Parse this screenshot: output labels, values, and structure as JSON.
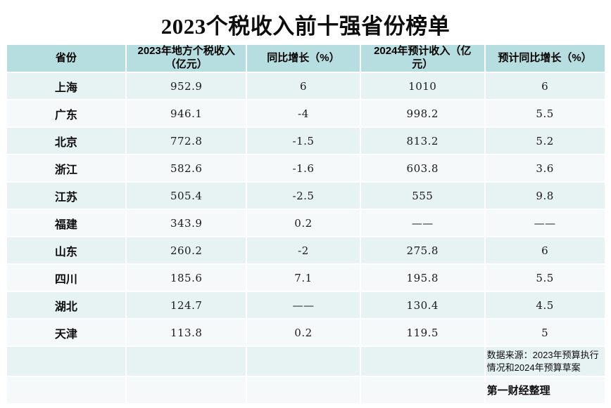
{
  "title": "2023个税收入前十强省份榜单",
  "table": {
    "headers": [
      "省份",
      "2023年地方个税收入（亿元）",
      "同比增长（%）",
      "2024年预计收入（亿元）",
      "预计同比增长（%）"
    ],
    "rows": [
      {
        "province": "上海",
        "income_2023": "952.9",
        "yoy_growth": "6",
        "income_2024": "1010",
        "expected_growth": "6"
      },
      {
        "province": "广东",
        "income_2023": "946.1",
        "yoy_growth": "-4",
        "income_2024": "998.2",
        "expected_growth": "5.5"
      },
      {
        "province": "北京",
        "income_2023": "772.8",
        "yoy_growth": "-1.5",
        "income_2024": "813.2",
        "expected_growth": "5.2"
      },
      {
        "province": "浙江",
        "income_2023": "582.6",
        "yoy_growth": "-1.6",
        "income_2024": "603.8",
        "expected_growth": "3.6"
      },
      {
        "province": "江苏",
        "income_2023": "505.4",
        "yoy_growth": "-2.5",
        "income_2024": "555",
        "expected_growth": "9.8"
      },
      {
        "province": "福建",
        "income_2023": "343.9",
        "yoy_growth": "0.2",
        "income_2024": "——",
        "expected_growth": "——"
      },
      {
        "province": "山东",
        "income_2023": "260.2",
        "yoy_growth": "-2",
        "income_2024": "275.8",
        "expected_growth": "6"
      },
      {
        "province": "四川",
        "income_2023": "185.6",
        "yoy_growth": "7.1",
        "income_2024": "195.8",
        "expected_growth": "5.5"
      },
      {
        "province": "湖北",
        "income_2023": "124.7",
        "yoy_growth": "——",
        "income_2024": "130.4",
        "expected_growth": "4.5"
      },
      {
        "province": "天津",
        "income_2023": "113.8",
        "yoy_growth": "0.2",
        "income_2024": "119.5",
        "expected_growth": "5"
      }
    ]
  },
  "footer": {
    "source_note": "数据来源：2023年预算执行情况和2024年预算草案",
    "credit": "第一财经整理"
  },
  "colors": {
    "header_bg": "#b6dde0",
    "row_teal": "#e7f2f2",
    "row_white": "#f5f9fa",
    "page_bg": "#ffffff",
    "text": "#0d0d0d"
  }
}
